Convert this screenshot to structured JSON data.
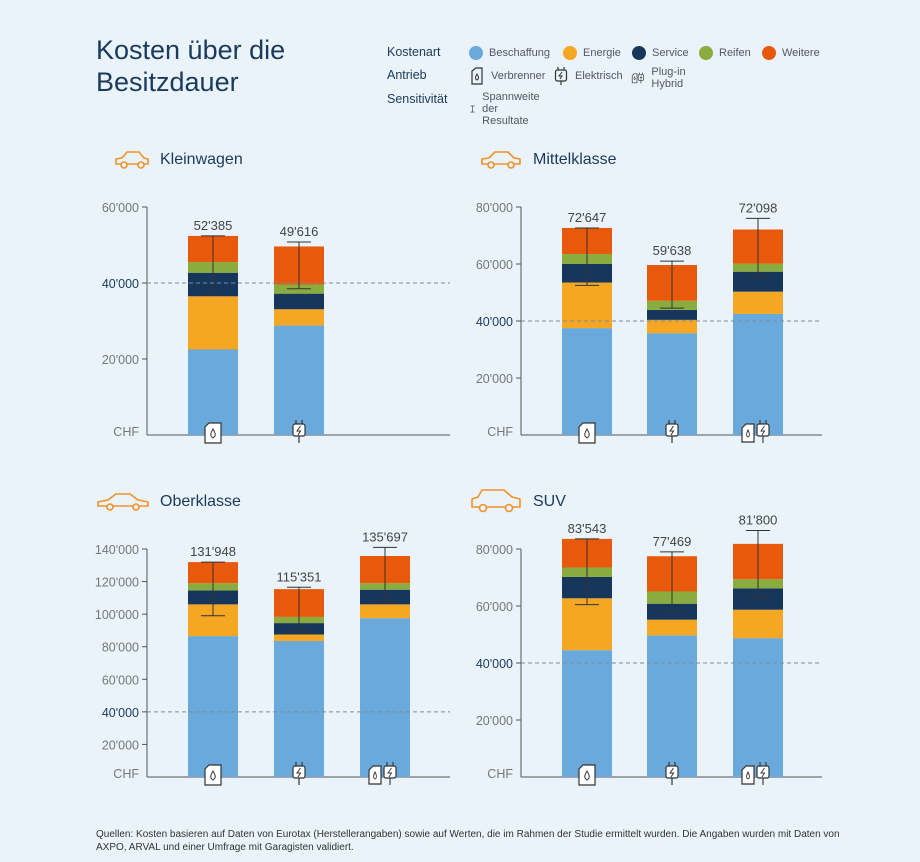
{
  "title": "Kosten über die Besitzdauer",
  "legend": {
    "kostenart_label": "Kostenart",
    "antrieb_label": "Antrieb",
    "sensitivitaet_label": "Sensitivität",
    "cost_types": [
      {
        "name": "Beschaffung",
        "color": "#69a9dc"
      },
      {
        "name": "Energie",
        "color": "#f5a623"
      },
      {
        "name": "Service",
        "color": "#17365c"
      },
      {
        "name": "Reifen",
        "color": "#8aab3e"
      },
      {
        "name": "Weitere",
        "color": "#e8590c"
      }
    ],
    "drives": [
      {
        "name": "Verbrenner",
        "icon": "fuel-can-icon"
      },
      {
        "name": "Elektrisch",
        "icon": "plug-icon"
      },
      {
        "name": "Plug-in Hybrid",
        "icon": "hybrid-icon"
      }
    ],
    "sensitivity_item": "Spannweite der Resultate"
  },
  "footer": "Quellen: Kosten basieren auf Daten von Eurotax (Herstellerangaben) sowie auf Werten, die im Rahmen der Studie ermittelt wurden. Die Angaben wurden mit Daten von AXPO, ARVAL und einer Umfrage mit Garagisten validiert.",
  "chart_data": [
    {
      "type": "bar",
      "stacked": true,
      "title": "Kleinwagen",
      "unit_label": "CHF",
      "ylim": [
        0,
        60000
      ],
      "yticks": [
        "60'000",
        "40'000",
        "20'000"
      ],
      "reference_line": 40000,
      "categories": [
        "Verbrenner",
        "Elektrisch"
      ],
      "totals": [
        "52'385",
        "49'616"
      ],
      "series": [
        {
          "name": "Beschaffung",
          "values": [
            22500,
            28800
          ]
        },
        {
          "name": "Energie",
          "values": [
            14000,
            4300
          ]
        },
        {
          "name": "Service",
          "values": [
            6200,
            4100
          ]
        },
        {
          "name": "Reifen",
          "values": [
            2800,
            2400
          ]
        },
        {
          "name": "Weitere",
          "values": [
            6885,
            10016
          ]
        }
      ],
      "ranges": [
        [
          37000,
          52385
        ],
        [
          38500,
          50800
        ]
      ]
    },
    {
      "type": "bar",
      "stacked": true,
      "title": "Mittelklasse",
      "unit_label": "CHF",
      "ylim": [
        0,
        80000
      ],
      "yticks": [
        "80'000",
        "60'000",
        "40'000",
        "20'000"
      ],
      "reference_line": 40000,
      "categories": [
        "Verbrenner",
        "Elektrisch",
        "Plug-in Hybrid"
      ],
      "totals": [
        "72'647",
        "59'638",
        "72'098"
      ],
      "series": [
        {
          "name": "Beschaffung",
          "values": [
            37500,
            35700,
            42500
          ]
        },
        {
          "name": "Energie",
          "values": [
            16000,
            4700,
            7800
          ]
        },
        {
          "name": "Service",
          "values": [
            6500,
            3500,
            7000
          ]
        },
        {
          "name": "Reifen",
          "values": [
            3500,
            3200,
            2800
          ]
        },
        {
          "name": "Weitere",
          "values": [
            9147,
            12538,
            11998
          ]
        }
      ],
      "ranges": [
        [
          52500,
          72647
        ],
        [
          44500,
          61000
        ],
        [
          55500,
          76000
        ]
      ]
    },
    {
      "type": "bar",
      "stacked": true,
      "title": "Oberklasse",
      "unit_label": "CHF",
      "ylim": [
        0,
        140000
      ],
      "yticks": [
        "140'000",
        "120'000",
        "100'000",
        "80'000",
        "60'000",
        "40'000",
        "20'000"
      ],
      "reference_line": 40000,
      "categories": [
        "Verbrenner",
        "Elektrisch",
        "Plug-in Hybrid"
      ],
      "totals": [
        "131'948",
        "115'351",
        "135'697"
      ],
      "series": [
        {
          "name": "Beschaffung",
          "values": [
            86500,
            83500,
            97500
          ]
        },
        {
          "name": "Energie",
          "values": [
            19500,
            4000,
            8500
          ]
        },
        {
          "name": "Service",
          "values": [
            8500,
            7000,
            9000
          ]
        },
        {
          "name": "Reifen",
          "values": [
            4500,
            3800,
            4000
          ]
        },
        {
          "name": "Weitere",
          "values": [
            12948,
            17051,
            16697
          ]
        }
      ],
      "ranges": [
        [
          99000,
          131948
        ],
        [
          89500,
          116500
        ],
        [
          107500,
          141000
        ]
      ]
    },
    {
      "type": "bar",
      "stacked": true,
      "title": "SUV",
      "unit_label": "CHF",
      "ylim": [
        0,
        80000
      ],
      "yticks": [
        "80'000",
        "60'000",
        "40'000",
        "20'000"
      ],
      "reference_line": 40000,
      "categories": [
        "Verbrenner",
        "Elektrisch",
        "Plug-in Hybrid"
      ],
      "totals": [
        "83'543",
        "77'469",
        "81'800"
      ],
      "series": [
        {
          "name": "Beschaffung",
          "values": [
            44500,
            49700,
            48700
          ]
        },
        {
          "name": "Energie",
          "values": [
            18200,
            5500,
            10000
          ]
        },
        {
          "name": "Service",
          "values": [
            7500,
            5600,
            7500
          ]
        },
        {
          "name": "Reifen",
          "values": [
            3300,
            4300,
            3200
          ]
        },
        {
          "name": "Weitere",
          "values": [
            10043,
            12369,
            12400
          ]
        }
      ],
      "ranges": [
        [
          60500,
          83543
        ],
        [
          58000,
          79000
        ],
        [
          63000,
          86500
        ]
      ]
    }
  ]
}
